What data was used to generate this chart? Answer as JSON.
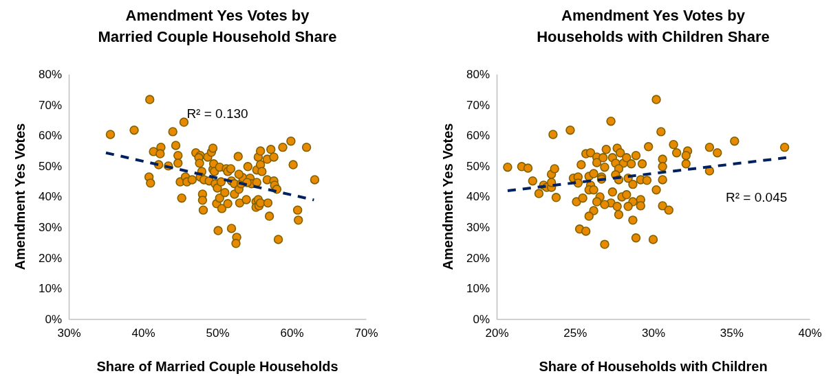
{
  "chart_data": [
    {
      "type": "scatter",
      "title": "Amendment Yes Votes by\nMarried Couple Household Share",
      "xlabel": "Share of Married Couple Households",
      "ylabel": "Amendment Yes Votes",
      "xlim": [
        30,
        70
      ],
      "ylim": [
        0,
        80
      ],
      "xticks": [
        {
          "value": 30,
          "label": "30%"
        },
        {
          "value": 40,
          "label": "40%"
        },
        {
          "value": 50,
          "label": "50%"
        },
        {
          "value": 60,
          "label": "60%"
        },
        {
          "value": 70,
          "label": "70%"
        }
      ],
      "yticks": [
        {
          "value": 0,
          "label": "0%"
        },
        {
          "value": 10,
          "label": "10%"
        },
        {
          "value": 20,
          "label": "20%"
        },
        {
          "value": 30,
          "label": "30%"
        },
        {
          "value": 40,
          "label": "40%"
        },
        {
          "value": 50,
          "label": "50%"
        },
        {
          "value": 60,
          "label": "60%"
        },
        {
          "value": 70,
          "label": "70%"
        },
        {
          "value": 80,
          "label": "80%"
        }
      ],
      "grid": false,
      "marker": "circle",
      "annotations": [
        "R² = 0.130"
      ],
      "series": [
        {
          "color": "#e88a00",
          "x": [
            35.6,
            38.8,
            40.9,
            40.8,
            41.0,
            41.4,
            42.4,
            42.3,
            42.1,
            43.4,
            44.0,
            44.4,
            44.7,
            44.7,
            45.5,
            45.2,
            45.0,
            45.7,
            45.9,
            46.6,
            47.1,
            47.7,
            47.5,
            47.6,
            47.9,
            47.7,
            48.0,
            48.0,
            48.1,
            48.2,
            48.9,
            48.7,
            49.2,
            49.4,
            49.5,
            49.7,
            50.0,
            49.6,
            50.3,
            49.4,
            49.9,
            50.1,
            50.6,
            50.3,
            50.5,
            51.0,
            51.2,
            51.4,
            51.4,
            51.8,
            51.9,
            51.9,
            52.3,
            52.6,
            52.5,
            52.3,
            53.0,
            52.9,
            53.2,
            53.4,
            52.8,
            52.9,
            53.9,
            54.4,
            54.6,
            54.0,
            54.1,
            55.3,
            55.3,
            55.5,
            55.8,
            55.2,
            55.2,
            55.6,
            55.5,
            55.8,
            56.0,
            55.8,
            56.7,
            57.2,
            56.7,
            57.0,
            56.8,
            57.6,
            57.6,
            57.7,
            58.0,
            58.2,
            58.8,
            59.9,
            60.2,
            60.8,
            60.9,
            62.0,
            63.1
          ],
          "values": [
            60.3,
            61.7,
            71.7,
            46.4,
            44.4,
            54.7,
            56.1,
            54.0,
            50.4,
            50.0,
            61.2,
            56.7,
            53.4,
            50.9,
            64.3,
            39.5,
            44.8,
            46.4,
            44.8,
            45.5,
            54.3,
            53.4,
            52.7,
            50.9,
            48.2,
            46.4,
            40.8,
            38.8,
            35.6,
            45.5,
            45.1,
            52.9,
            54.5,
            48.9,
            50.7,
            44.2,
            42.8,
            48.2,
            49.6,
            55.8,
            37.7,
            28.9,
            36.1,
            39.5,
            44.8,
            41.3,
            49.1,
            37.7,
            48.2,
            49.1,
            45.1,
            29.6,
            40.8,
            26.7,
            24.7,
            44.2,
            37.9,
            42.4,
            44.2,
            46.2,
            53.1,
            47.3,
            39.0,
            46.0,
            44.2,
            44.6,
            49.8,
            44.6,
            48.7,
            52.9,
            50.4,
            38.3,
            36.5,
            37.0,
            39.0,
            54.9,
            48.2,
            37.9,
            52.2,
            55.4,
            45.5,
            33.6,
            37.9,
            52.9,
            45.1,
            43.7,
            42.4,
            26.0,
            56.1,
            58.1,
            50.4,
            35.6,
            32.3,
            56.1,
            45.5
          ]
        },
        {
          "type": "line",
          "color": "#002060",
          "line_style": "dashed",
          "marker": "none",
          "x": [
            35,
            63
          ],
          "values": [
            54.3,
            38.9
          ]
        }
      ]
    },
    {
      "type": "scatter",
      "title": "Amendment Yes Votes by\nHouseholds with Children Share",
      "xlabel": "Share of Households with Children",
      "ylabel": "Amendment Yes Votes",
      "xlim": [
        20,
        40
      ],
      "ylim": [
        0,
        80
      ],
      "xticks": [
        {
          "value": 20,
          "label": "20%"
        },
        {
          "value": 25,
          "label": "25%"
        },
        {
          "value": 30,
          "label": "30%"
        },
        {
          "value": 35,
          "label": "35%"
        },
        {
          "value": 40,
          "label": "40%"
        }
      ],
      "yticks": [
        {
          "value": 0,
          "label": "0%"
        },
        {
          "value": 10,
          "label": "10%"
        },
        {
          "value": 20,
          "label": "20%"
        },
        {
          "value": 30,
          "label": "30%"
        },
        {
          "value": 40,
          "label": "40%"
        },
        {
          "value": 50,
          "label": "50%"
        },
        {
          "value": 60,
          "label": "60%"
        },
        {
          "value": 70,
          "label": "70%"
        },
        {
          "value": 80,
          "label": "80%"
        }
      ],
      "grid": false,
      "marker": "circle",
      "annotations": [
        "R² = 0.045"
      ],
      "series": [
        {
          "color": "#e88a00",
          "x": [
            20.7,
            21.6,
            22.0,
            22.3,
            22.7,
            23.0,
            23.2,
            23.5,
            23.5,
            23.5,
            23.7,
            23.6,
            23.8,
            24.7,
            24.9,
            25.2,
            25.2,
            25.1,
            25.5,
            25.3,
            25.7,
            25.4,
            25.7,
            26.0,
            26.4,
            26.4,
            25.9,
            26.2,
            26.0,
            25.9,
            26.2,
            26.6,
            26.4,
            26.2,
            25.9,
            26.7,
            26.8,
            26.9,
            30.2,
            27.3,
            30.5,
            27.0,
            27.7,
            27.9,
            27.4,
            27.6,
            28.1,
            28.3,
            28.6,
            28.9,
            29.3,
            29.7,
            27.8,
            26.9,
            27.6,
            27.8,
            28.4,
            28.7,
            29.2,
            29.6,
            30.6,
            26.7,
            30.2,
            27.4,
            28.0,
            28.3,
            28.7,
            28.4,
            29.2,
            29.2,
            27.3,
            27.7,
            26.9,
            27.8,
            28.7,
            28.9,
            30.0,
            30.6,
            31.0,
            30.6,
            30.6,
            31.3,
            31.5,
            32.2,
            32.1,
            32.1,
            33.6,
            34.1,
            33.6,
            35.2,
            38.4
          ],
          "values": [
            49.6,
            49.8,
            49.3,
            45.1,
            41.0,
            43.7,
            43.0,
            43.0,
            44.6,
            47.3,
            49.1,
            60.3,
            39.7,
            61.7,
            46.0,
            46.4,
            44.4,
            38.3,
            39.5,
            29.4,
            28.7,
            50.4,
            54.0,
            54.3,
            52.9,
            51.1,
            46.6,
            47.5,
            43.7,
            42.2,
            42.2,
            39.9,
            38.3,
            35.4,
            33.6,
            46.4,
            52.7,
            24.4,
            71.7,
            64.6,
            61.2,
            55.4,
            55.8,
            54.3,
            52.7,
            50.9,
            50.9,
            52.7,
            50.7,
            53.4,
            50.7,
            56.3,
            49.1,
            49.6,
            47.1,
            45.5,
            46.0,
            44.0,
            45.5,
            45.3,
            45.5,
            45.7,
            42.2,
            41.5,
            39.9,
            40.6,
            38.3,
            36.8,
            39.0,
            37.0,
            37.9,
            36.8,
            37.4,
            34.1,
            32.3,
            26.5,
            26.0,
            37.0,
            35.6,
            52.2,
            49.8,
            57.0,
            54.3,
            54.9,
            53.4,
            50.7,
            56.1,
            54.3,
            48.4,
            58.1,
            56.1
          ]
        },
        {
          "type": "line",
          "color": "#002060",
          "line_style": "dashed",
          "marker": "none",
          "x": [
            20.7,
            38.5
          ],
          "values": [
            41.9,
            52.7
          ]
        }
      ]
    }
  ]
}
